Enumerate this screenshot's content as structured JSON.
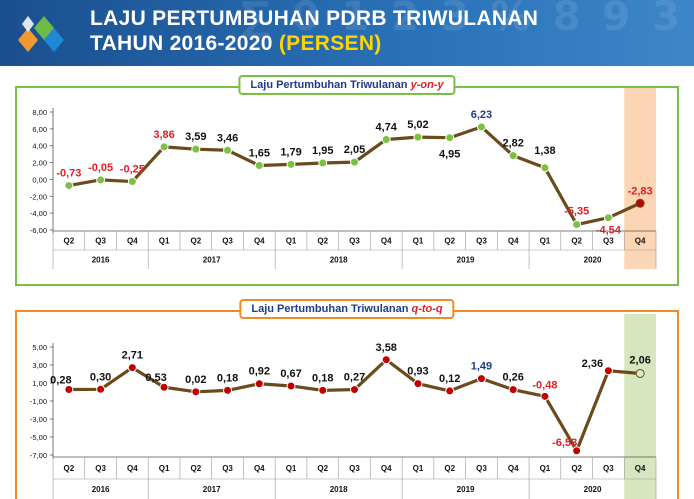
{
  "header": {
    "title_line1": "LAJU PERTUMBUHAN PDRB TRIWULANAN",
    "title_line2": "TAHUN 2016-2020",
    "title_highlight": "(PERSEN)"
  },
  "chart_data": [
    {
      "type": "line",
      "title_prefix": "Laju Pertumbuhan Triwulanan",
      "title_suffix": "y-on-y",
      "quarters": [
        "Q2",
        "Q3",
        "Q4",
        "Q1",
        "Q2",
        "Q3",
        "Q4",
        "Q1",
        "Q2",
        "Q3",
        "Q4",
        "Q1",
        "Q2",
        "Q3",
        "Q4",
        "Q1",
        "Q2",
        "Q3",
        "Q4"
      ],
      "years": [
        {
          "label": "2016",
          "count": 3
        },
        {
          "label": "2017",
          "count": 4
        },
        {
          "label": "2018",
          "count": 4
        },
        {
          "label": "2019",
          "count": 4
        },
        {
          "label": "2020",
          "count": 4
        }
      ],
      "values": [
        -0.73,
        -0.05,
        -0.25,
        3.86,
        3.59,
        3.46,
        1.65,
        1.79,
        1.95,
        2.05,
        4.74,
        5.02,
        4.95,
        6.23,
        2.82,
        1.38,
        -5.35,
        -4.54,
        -2.83
      ],
      "value_labels": [
        "-0,73",
        "-0,05",
        "-0,25",
        "3,86",
        "3,59",
        "3,46",
        "1,65",
        "1,79",
        "1,95",
        "2,05",
        "4,74",
        "5,02",
        "4,95",
        "6,23",
        "2,82",
        "1,38",
        "-5,35",
        "-4,54",
        "-2,83"
      ],
      "ylim": [
        -6,
        8
      ],
      "yticks": [
        8,
        6,
        4,
        2,
        0,
        -2,
        -4,
        -6
      ],
      "ytick_labels": [
        "8,00",
        "6,00",
        "4,00",
        "2,00",
        "0,00",
        "-2,00",
        "-4,00",
        "-6,00"
      ],
      "highlight_index": 18,
      "colors": {
        "line": "#6b4a1c",
        "marker": "#7cbf43",
        "highlight_marker": "#c00000",
        "highlight_band": "#fcd5b4",
        "negative_label": "#e31e24",
        "positive_label": "#111111",
        "peak_label": "#1f3c88",
        "frame": "#77c043"
      }
    },
    {
      "type": "line",
      "title_prefix": "Laju Pertumbuhan Triwulanan",
      "title_suffix": "q-to-q",
      "quarters": [
        "Q2",
        "Q3",
        "Q4",
        "Q1",
        "Q2",
        "Q3",
        "Q4",
        "Q1",
        "Q2",
        "Q3",
        "Q4",
        "Q1",
        "Q2",
        "Q3",
        "Q4",
        "Q1",
        "Q2",
        "Q3",
        "Q4"
      ],
      "years": [
        {
          "label": "2016",
          "count": 3
        },
        {
          "label": "2017",
          "count": 4
        },
        {
          "label": "2018",
          "count": 4
        },
        {
          "label": "2019",
          "count": 4
        },
        {
          "label": "2020",
          "count": 4
        }
      ],
      "values": [
        0.28,
        0.3,
        2.71,
        0.53,
        0.02,
        0.18,
        0.92,
        0.67,
        0.18,
        0.27,
        3.58,
        0.93,
        0.12,
        1.49,
        0.26,
        -0.48,
        -6.53,
        2.36,
        2.06
      ],
      "value_labels": [
        "0,28",
        "0,30",
        "2,71",
        "0,53",
        "0,02",
        "0,18",
        "0,92",
        "0,67",
        "0,18",
        "0,27",
        "3,58",
        "0,93",
        "0,12",
        "1,49",
        "0,26",
        "-0,48",
        "-6,53",
        "2,36",
        "2,06"
      ],
      "ylim": [
        -7,
        5
      ],
      "yticks": [
        5,
        3,
        1,
        -1,
        -3,
        -5,
        -7
      ],
      "ytick_labels": [
        "5,00",
        "3,00",
        "1,00",
        "-1,00",
        "-3,00",
        "-5,00",
        "-7,00"
      ],
      "highlight_index": 18,
      "colors": {
        "line": "#6b4a1c",
        "marker": "#c00000",
        "highlight_marker": "#d8ecc0",
        "highlight_band": "#d8e6bf",
        "negative_label": "#e31e24",
        "positive_label": "#111111",
        "peak_label": "#1f3c88",
        "frame": "#f08a24"
      }
    }
  ]
}
